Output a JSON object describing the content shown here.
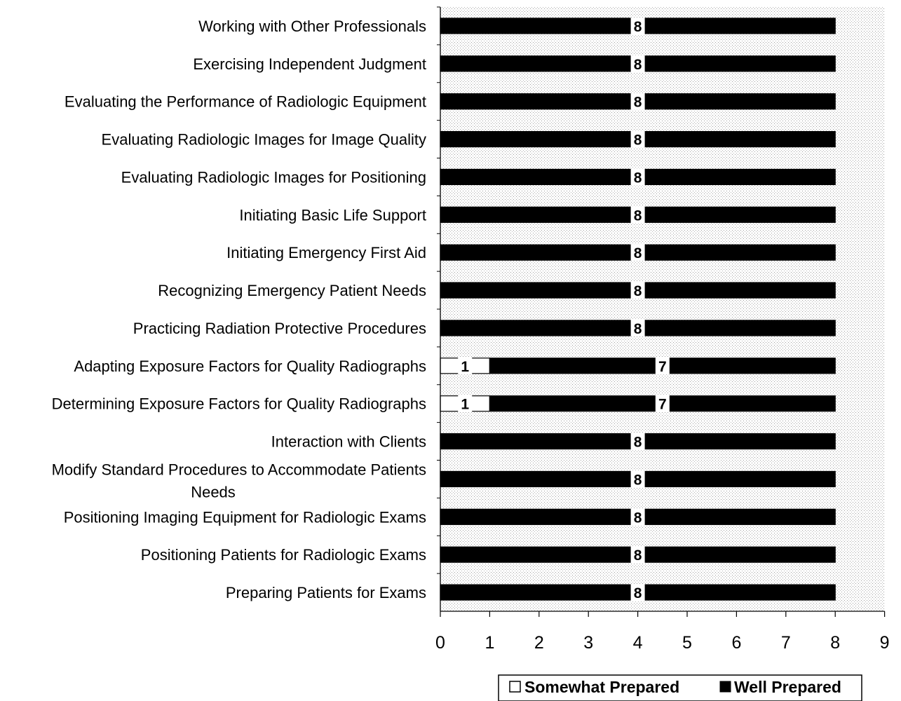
{
  "chart_data": {
    "type": "bar",
    "orientation": "horizontal",
    "stacked": true,
    "categories": [
      "Working with Other Professionals",
      "Exercising Independent Judgment",
      "Evaluating the Performance of Radiologic Equipment",
      "Evaluating Radiologic Images for Image Quality",
      "Evaluating Radiologic Images for Positioning",
      "Initiating Basic Life Support",
      "Initiating Emergency First Aid",
      "Recognizing Emergency Patient Needs",
      "Practicing Radiation Protective Procedures",
      "Adapting Exposure Factors for Quality Radiographs",
      "Determining Exposure Factors for Quality Radiographs",
      "Interaction with Clients",
      "Modify Standard Procedures to Accommodate Patients Needs",
      "Positioning Imaging Equipment for Radiologic Exams",
      "Positioning Patients for Radiologic Exams",
      "Preparing Patients for Exams"
    ],
    "series": [
      {
        "name": "Somewhat Prepared",
        "color": "#ffffff",
        "values": [
          0,
          0,
          0,
          0,
          0,
          0,
          0,
          0,
          0,
          1,
          1,
          0,
          0,
          0,
          0,
          0
        ]
      },
      {
        "name": "Well Prepared",
        "color": "#000000",
        "values": [
          8,
          8,
          8,
          8,
          8,
          8,
          8,
          8,
          8,
          7,
          7,
          8,
          8,
          8,
          8,
          8
        ]
      }
    ],
    "xlim": [
      0,
      9
    ],
    "x_ticks": [
      "0",
      "1",
      "2",
      "3",
      "4",
      "5",
      "6",
      "7",
      "8",
      "9"
    ],
    "title": "",
    "xlabel": "",
    "ylabel": "",
    "legend_position": "bottom-right",
    "plot_background": "dotted-gray"
  }
}
